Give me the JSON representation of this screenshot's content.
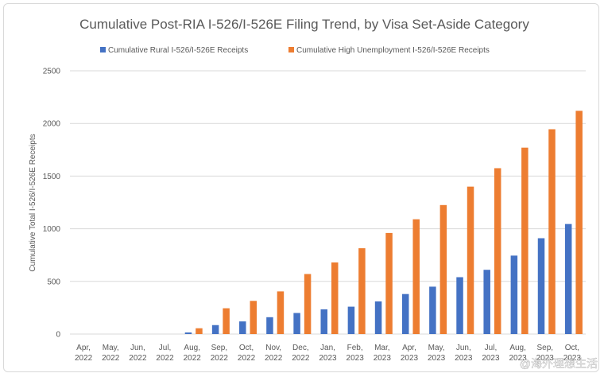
{
  "chart_data": {
    "type": "bar",
    "title": "Cumulative Post-RIA I-526/I-526E Filing Trend, by Visa Set-Aside Category",
    "xlabel": "",
    "ylabel": "Cumulative Total I-526/I-526E Receipts",
    "ylim": [
      0,
      2500
    ],
    "yticks": [
      0,
      500,
      1000,
      1500,
      2000,
      2500
    ],
    "grid": true,
    "legend_position": "top",
    "categories": [
      [
        "Apr,",
        "2022"
      ],
      [
        "May,",
        "2022"
      ],
      [
        "Jun,",
        "2022"
      ],
      [
        "Jul,",
        "2022"
      ],
      [
        "Aug,",
        "2022"
      ],
      [
        "Sep,",
        "2022"
      ],
      [
        "Oct,",
        "2022"
      ],
      [
        "Nov,",
        "2022"
      ],
      [
        "Dec,",
        "2022"
      ],
      [
        "Jan,",
        "2023"
      ],
      [
        "Feb,",
        "2023"
      ],
      [
        "Mar,",
        "2023"
      ],
      [
        "Apr,",
        "2023"
      ],
      [
        "May,",
        "2023"
      ],
      [
        "Jun,",
        "2023"
      ],
      [
        "Jul,",
        "2023"
      ],
      [
        "Aug,",
        "2023"
      ],
      [
        "Sep,",
        "2023"
      ],
      [
        "Oct,",
        "2023"
      ]
    ],
    "series": [
      {
        "name": "Cumulative Rural I-526/I-526E Receipts",
        "color": "#4472c4",
        "values": [
          0,
          0,
          0,
          0,
          15,
          85,
          120,
          160,
          200,
          235,
          260,
          310,
          380,
          450,
          540,
          610,
          745,
          910,
          1045
        ]
      },
      {
        "name": "Cumulative High Unemployment I-526/I-526E Receipts",
        "color": "#ed7d31",
        "values": [
          0,
          0,
          0,
          0,
          55,
          245,
          315,
          405,
          570,
          680,
          815,
          960,
          1090,
          1225,
          1400,
          1575,
          1770,
          1945,
          2120
        ]
      }
    ]
  },
  "watermark": "@海外理想生活",
  "colors": {
    "grid": "#d9d9d9",
    "text": "#595959"
  }
}
